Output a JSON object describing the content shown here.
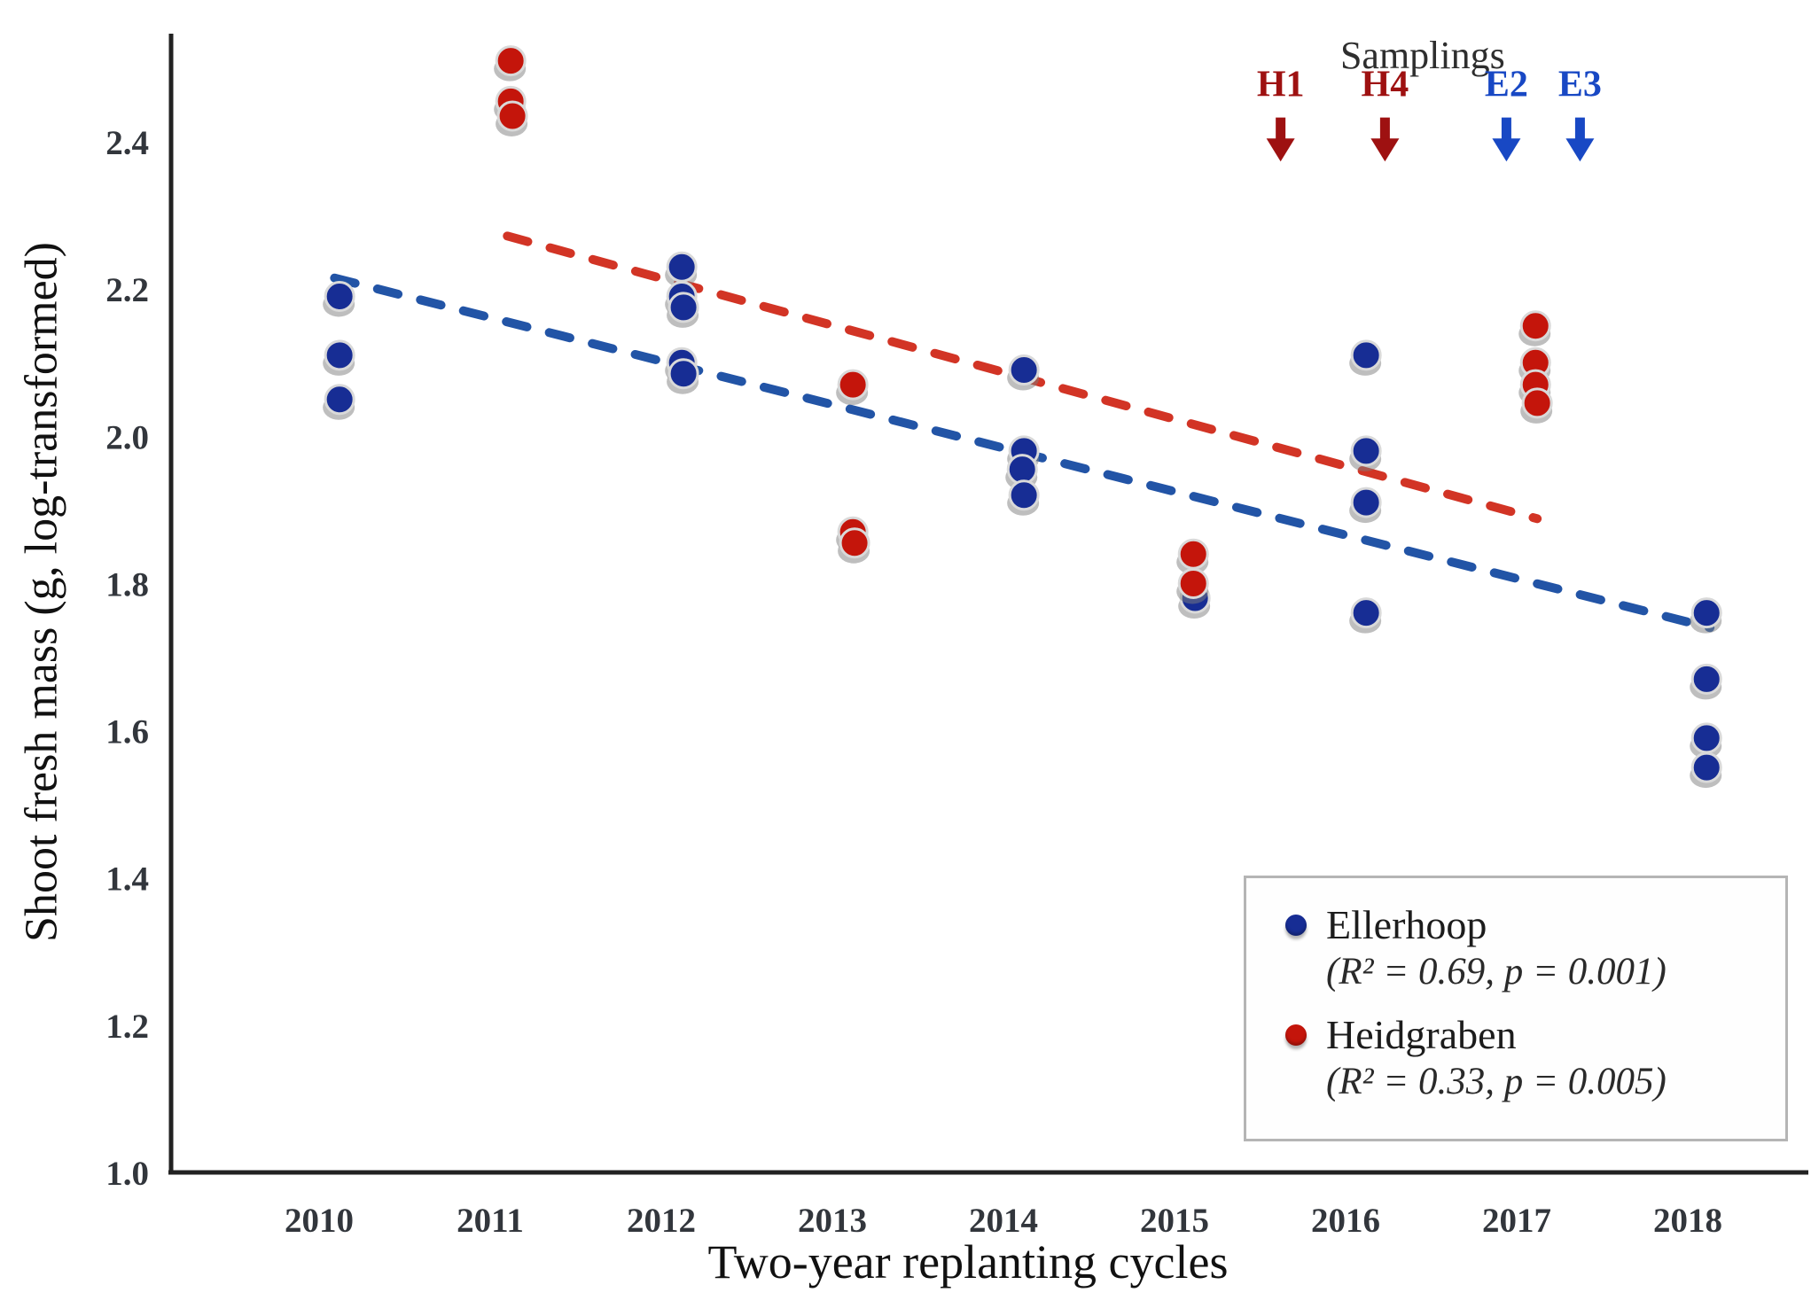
{
  "figure": {
    "background": "#ffffff"
  },
  "chart_data": {
    "type": "scatter",
    "title": "",
    "xlabel": "Two-year replanting cycles",
    "ylabel": "Shoot fresh mass (g, log-transformed)",
    "x_ticks": [
      "2010",
      "2011",
      "2012",
      "2013",
      "2014",
      "2015",
      "2016",
      "2017",
      "2018"
    ],
    "y_ticks": [
      "1.0",
      "1.2",
      "1.4",
      "1.6",
      "1.8",
      "2.0",
      "2.2",
      "2.4"
    ],
    "xlim": [
      2009.13,
      2018.69
    ],
    "ylim": [
      1.0,
      2.547
    ],
    "grid": false,
    "legend_position": "bottom-right",
    "axis_color": "#222222",
    "series": [
      {
        "name": "Ellerhoop",
        "r2": "0.69",
        "p": "0.001",
        "point_color": "#172d94",
        "trend_color": "#2254a6",
        "points": [
          {
            "x": 2010.12,
            "y": 2.19
          },
          {
            "x": 2010.12,
            "y": 2.11
          },
          {
            "x": 2010.12,
            "y": 2.05
          },
          {
            "x": 2012.12,
            "y": 2.23
          },
          {
            "x": 2012.12,
            "y": 2.19
          },
          {
            "x": 2012.13,
            "y": 2.175
          },
          {
            "x": 2012.12,
            "y": 2.1
          },
          {
            "x": 2012.13,
            "y": 2.085
          },
          {
            "x": 2014.12,
            "y": 2.09
          },
          {
            "x": 2014.12,
            "y": 1.98
          },
          {
            "x": 2014.11,
            "y": 1.955
          },
          {
            "x": 2014.12,
            "y": 1.92
          },
          {
            "x": 2015.12,
            "y": 1.78
          },
          {
            "x": 2016.12,
            "y": 2.11
          },
          {
            "x": 2016.12,
            "y": 1.98
          },
          {
            "x": 2016.12,
            "y": 1.91
          },
          {
            "x": 2016.12,
            "y": 1.76
          },
          {
            "x": 2018.11,
            "y": 1.76
          },
          {
            "x": 2018.11,
            "y": 1.67
          },
          {
            "x": 2018.11,
            "y": 1.59
          },
          {
            "x": 2018.11,
            "y": 1.55
          }
        ],
        "trend": {
          "x1": 2010.09,
          "y1": 2.215,
          "x2": 2018.13,
          "y2": 1.74
        }
      },
      {
        "name": "Heidgraben",
        "r2": "0.33",
        "p": "0.005",
        "point_color": "#c4150b",
        "trend_color": "#d23425",
        "points": [
          {
            "x": 2011.12,
            "y": 2.51
          },
          {
            "x": 2011.12,
            "y": 2.455
          },
          {
            "x": 2011.13,
            "y": 2.435
          },
          {
            "x": 2013.12,
            "y": 2.07
          },
          {
            "x": 2013.12,
            "y": 1.87
          },
          {
            "x": 2013.13,
            "y": 1.855
          },
          {
            "x": 2015.11,
            "y": 1.84
          },
          {
            "x": 2015.11,
            "y": 1.8
          },
          {
            "x": 2017.11,
            "y": 2.15
          },
          {
            "x": 2017.11,
            "y": 2.1
          },
          {
            "x": 2017.11,
            "y": 2.07
          },
          {
            "x": 2017.12,
            "y": 2.045
          }
        ],
        "trend": {
          "x1": 2011.1,
          "y1": 2.272,
          "x2": 2017.12,
          "y2": 1.888
        }
      }
    ],
    "annotations": {
      "title": "Samplings",
      "title_x": 2016.45,
      "title_y": 2.5,
      "label_y": 2.462,
      "arrow_top": 2.433,
      "arrow_bottom": 2.378,
      "markers": [
        {
          "label": "H1",
          "x": 2015.62,
          "color": "#9e1111"
        },
        {
          "label": "H4",
          "x": 2016.23,
          "color": "#9e1111"
        },
        {
          "label": "E2",
          "x": 2016.94,
          "color": "#1848c4"
        },
        {
          "label": "E3",
          "x": 2017.37,
          "color": "#1848c4"
        }
      ]
    }
  },
  "legend": {
    "items": [
      {
        "label": "Ellerhoop",
        "stats": "(R² = 0.69, p = 0.001)",
        "color": "#172d94"
      },
      {
        "label": "Heidgraben",
        "stats": "(R² = 0.33, p = 0.005)",
        "color": "#c4150b"
      }
    ]
  },
  "axes": {
    "x_title": "Two-year replanting cycles",
    "y_title": "Shoot fresh mass (g, log-transformed)"
  }
}
